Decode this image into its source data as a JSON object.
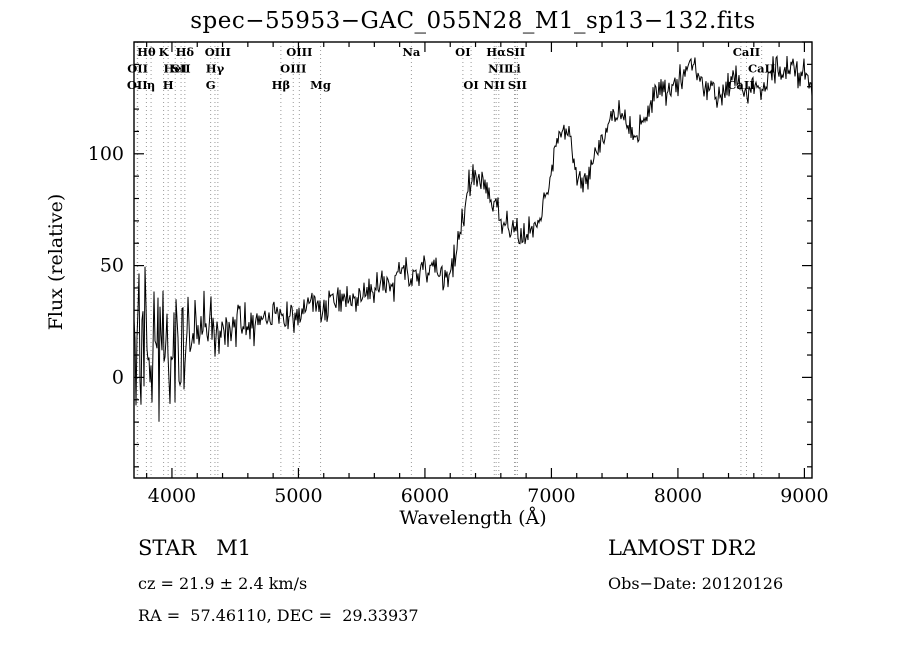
{
  "chart_data": {
    "type": "line",
    "title": "spec−55953−GAC_055N28_M1_sp13−132.fits",
    "xlabel": "Wavelength (Å)",
    "ylabel": "Flux (relative)",
    "xlim": [
      3700,
      9060
    ],
    "ylim": [
      -45,
      150
    ],
    "xticks": [
      4000,
      5000,
      6000,
      7000,
      8000,
      9000
    ],
    "yticks": [
      0,
      50,
      100
    ],
    "x_minor_step": 200,
    "y_minor_step": 10,
    "grid": false,
    "legend": "none",
    "spectral_lines": [
      {
        "label": "Hθ",
        "wavelength": 3798,
        "row": 0
      },
      {
        "label": "K",
        "wavelength": 3934,
        "row": 0
      },
      {
        "label": "Hδ",
        "wavelength": 4102,
        "row": 0
      },
      {
        "label": "OIII",
        "wavelength": 4363,
        "row": 0
      },
      {
        "label": "OIII",
        "wavelength": 5007,
        "row": 0
      },
      {
        "label": "Na",
        "wavelength": 5893,
        "row": 0
      },
      {
        "label": "OI",
        "wavelength": 6300,
        "row": 0
      },
      {
        "label": "Hα",
        "wavelength": 6563,
        "row": 0
      },
      {
        "label": "SII",
        "wavelength": 6717,
        "row": 0
      },
      {
        "label": "CaII",
        "wavelength": 8542,
        "row": 0
      },
      {
        "label": "OII",
        "wavelength": 3729,
        "row": 1
      },
      {
        "label": "HeI",
        "wavelength": 4026,
        "row": 1
      },
      {
        "label": "SII",
        "wavelength": 4072,
        "row": 1
      },
      {
        "label": "Hγ",
        "wavelength": 4340,
        "row": 1
      },
      {
        "label": "OIII",
        "wavelength": 4959,
        "row": 1
      },
      {
        "label": "NII",
        "wavelength": 6584,
        "row": 1
      },
      {
        "label": "Li",
        "wavelength": 6708,
        "row": 1
      },
      {
        "label": "CaII",
        "wavelength": 8662,
        "row": 1
      },
      {
        "label": "OII",
        "wavelength": 3726,
        "row": 2
      },
      {
        "label": "η",
        "wavelength": 3835,
        "row": 2
      },
      {
        "label": "H",
        "wavelength": 3970,
        "row": 2
      },
      {
        "label": "G",
        "wavelength": 4306,
        "row": 2
      },
      {
        "label": "Hβ",
        "wavelength": 4861,
        "row": 2
      },
      {
        "label": "Mg",
        "wavelength": 5175,
        "row": 2
      },
      {
        "label": "OI",
        "wavelength": 6365,
        "row": 2
      },
      {
        "label": "NII",
        "wavelength": 6548,
        "row": 2
      },
      {
        "label": "SII",
        "wavelength": 6731,
        "row": 2
      },
      {
        "label": "CaII",
        "wavelength": 8498,
        "row": 2
      }
    ],
    "spectrum_anchors": [
      [
        3700,
        8
      ],
      [
        3800,
        10
      ],
      [
        3900,
        12
      ],
      [
        4000,
        14
      ],
      [
        4100,
        16
      ],
      [
        4200,
        18
      ],
      [
        4300,
        20
      ],
      [
        4400,
        23
      ],
      [
        4500,
        25
      ],
      [
        4650,
        26
      ],
      [
        4800,
        28
      ],
      [
        4870,
        27
      ],
      [
        5000,
        30
      ],
      [
        5100,
        31
      ],
      [
        5180,
        30
      ],
      [
        5300,
        33
      ],
      [
        5450,
        36
      ],
      [
        5600,
        40
      ],
      [
        5750,
        44
      ],
      [
        5830,
        47
      ],
      [
        5890,
        45
      ],
      [
        5960,
        49
      ],
      [
        6040,
        50
      ],
      [
        6120,
        46
      ],
      [
        6180,
        44
      ],
      [
        6240,
        54
      ],
      [
        6300,
        72
      ],
      [
        6360,
        88
      ],
      [
        6400,
        93
      ],
      [
        6450,
        89
      ],
      [
        6520,
        80
      ],
      [
        6570,
        73
      ],
      [
        6640,
        68
      ],
      [
        6720,
        65
      ],
      [
        6800,
        64
      ],
      [
        6880,
        68
      ],
      [
        6940,
        76
      ],
      [
        7000,
        92
      ],
      [
        7060,
        108
      ],
      [
        7100,
        114
      ],
      [
        7150,
        102
      ],
      [
        7210,
        86
      ],
      [
        7270,
        89
      ],
      [
        7340,
        98
      ],
      [
        7410,
        107
      ],
      [
        7480,
        115
      ],
      [
        7550,
        121
      ],
      [
        7610,
        111
      ],
      [
        7660,
        107
      ],
      [
        7720,
        116
      ],
      [
        7790,
        123
      ],
      [
        7870,
        127
      ],
      [
        7950,
        130
      ],
      [
        8040,
        134
      ],
      [
        8120,
        139
      ],
      [
        8190,
        134
      ],
      [
        8260,
        129
      ],
      [
        8330,
        127
      ],
      [
        8400,
        131
      ],
      [
        8460,
        134
      ],
      [
        8500,
        129
      ],
      [
        8540,
        126
      ],
      [
        8580,
        132
      ],
      [
        8620,
        130
      ],
      [
        8660,
        127
      ],
      [
        8720,
        134
      ],
      [
        8790,
        138
      ],
      [
        8850,
        135
      ],
      [
        8910,
        139
      ],
      [
        8960,
        134
      ],
      [
        9010,
        139
      ],
      [
        9060,
        129
      ]
    ],
    "noise_sigma": [
      [
        3700,
        26
      ],
      [
        3780,
        23
      ],
      [
        3860,
        21
      ],
      [
        3940,
        18
      ],
      [
        4020,
        15
      ],
      [
        4100,
        12
      ],
      [
        4200,
        9
      ],
      [
        4300,
        7
      ],
      [
        4450,
        5.5
      ],
      [
        4700,
        4.5
      ],
      [
        5000,
        4
      ],
      [
        5500,
        3.5
      ],
      [
        6000,
        3.5
      ],
      [
        6600,
        3.5
      ],
      [
        7200,
        3.2
      ],
      [
        8000,
        3
      ],
      [
        9060,
        3
      ]
    ]
  },
  "footer": {
    "object_type": "STAR   M1",
    "survey": "LAMOST DR2",
    "cz": "cz = 21.9 ± 2.4 km/s",
    "obs_date": "Obs−Date: 20120126",
    "ra_dec": "RA =  57.46110, DEC =  29.33937"
  }
}
